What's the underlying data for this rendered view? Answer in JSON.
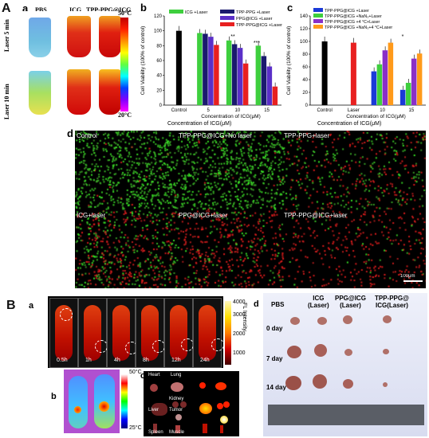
{
  "panels": {
    "A": "A",
    "B": "B",
    "a": "a",
    "b": "b",
    "c": "c",
    "d": "d"
  },
  "thermal_tubes": {
    "columns": [
      "PBS",
      "ICG",
      "TPP-PPG@ICG"
    ],
    "rows": [
      "Laser 5 min",
      "Laser 10 min"
    ],
    "scale_max": "50°C",
    "scale_min": "20°C"
  },
  "chart_data": [
    {
      "type": "bar",
      "panel": "b",
      "ylabel": "Cell Viability (100% of control)",
      "xlabel": "Concentration of ICG(μM)",
      "categories": [
        "Control",
        "5",
        "10",
        "15"
      ],
      "ylim": [
        0,
        120
      ],
      "yticks": [
        0,
        20,
        40,
        60,
        80,
        100,
        120
      ],
      "series": [
        {
          "name": "ICG +Laser",
          "color": "#3ecf3e",
          "values": [
            null,
            97,
            87,
            80
          ]
        },
        {
          "name": "TPP-PPG +Laser",
          "color": "#1a1a6e",
          "values": [
            null,
            96,
            82,
            66
          ]
        },
        {
          "name": "PPG@ICG +Laser",
          "color": "#5a2fc8",
          "values": [
            null,
            92,
            77,
            52
          ]
        },
        {
          "name": "TPP-PPG@ICG +Laser",
          "color": "#e82020",
          "values": [
            null,
            81,
            56,
            25
          ]
        }
      ],
      "control": {
        "value": 100,
        "color": "#000000"
      },
      "stars": [
        "**",
        "***"
      ]
    },
    {
      "type": "bar",
      "panel": "c",
      "ylabel": "Cell Viability (100% of control)",
      "xlabel": "Concentration of ICG(μM)",
      "categories": [
        "Control",
        "Laser",
        "10",
        "15"
      ],
      "ylim": [
        0,
        140
      ],
      "yticks": [
        0,
        20,
        40,
        60,
        80,
        100,
        120,
        140
      ],
      "series": [
        {
          "name": "TPP-PPG@ICG +Laser",
          "color": "#1a3ad8",
          "values": [
            null,
            null,
            53,
            24
          ]
        },
        {
          "name": "TPP-PPG@ICG +NaN₃+Laser",
          "color": "#3ecf3e",
          "values": [
            null,
            null,
            64,
            35
          ]
        },
        {
          "name": "TPP-PPG@ICG +4 °C+Laser",
          "color": "#8a2fc8",
          "values": [
            null,
            null,
            86,
            73
          ]
        },
        {
          "name": "TPP-PPG@ICG +NaN₃+4 °C+Laser",
          "color": "#ff9a1a",
          "values": [
            null,
            null,
            98,
            81
          ]
        }
      ],
      "control": {
        "value": 100,
        "color": "#000000"
      },
      "laser": {
        "value": 98,
        "color": "#e82020"
      },
      "stars": [
        "*"
      ]
    }
  ],
  "axis_labels_under_row": {
    "left": "Concentration of ICG(μM)",
    "right": "Concentration of ICG(μM)"
  },
  "micrographs": {
    "top": [
      "Control",
      "TPP-PPG@ICG+No laser",
      "TPP-PPG+laser"
    ],
    "bottom": [
      "ICG+laser",
      "PPG@ICG+laser",
      "TPP-PPG@ICG+laser"
    ],
    "scale_bar": "100μm"
  },
  "fluorescence": {
    "times": [
      "0.5h",
      "1h",
      "4h",
      "8h",
      "12h",
      "24h"
    ],
    "colorbar_ticks": [
      "4000",
      "3000",
      "2000",
      "1000"
    ],
    "colorbar_label": "FL Intensity"
  },
  "thermal_mice": {
    "scale_max": "50°C",
    "scale_min": "25°C"
  },
  "organs": [
    "Heart",
    "Lung",
    "Kidney",
    "Liver",
    "Tumor",
    "Spleen",
    "Muscle"
  ],
  "tumors": {
    "columns": [
      "PBS",
      "ICG\n(Laser)",
      "PPG@ICG\n(Laser)",
      "TPP-PPG@\nICG(Laser)"
    ],
    "rows": [
      "0 day",
      "7 day",
      "14 day"
    ]
  }
}
